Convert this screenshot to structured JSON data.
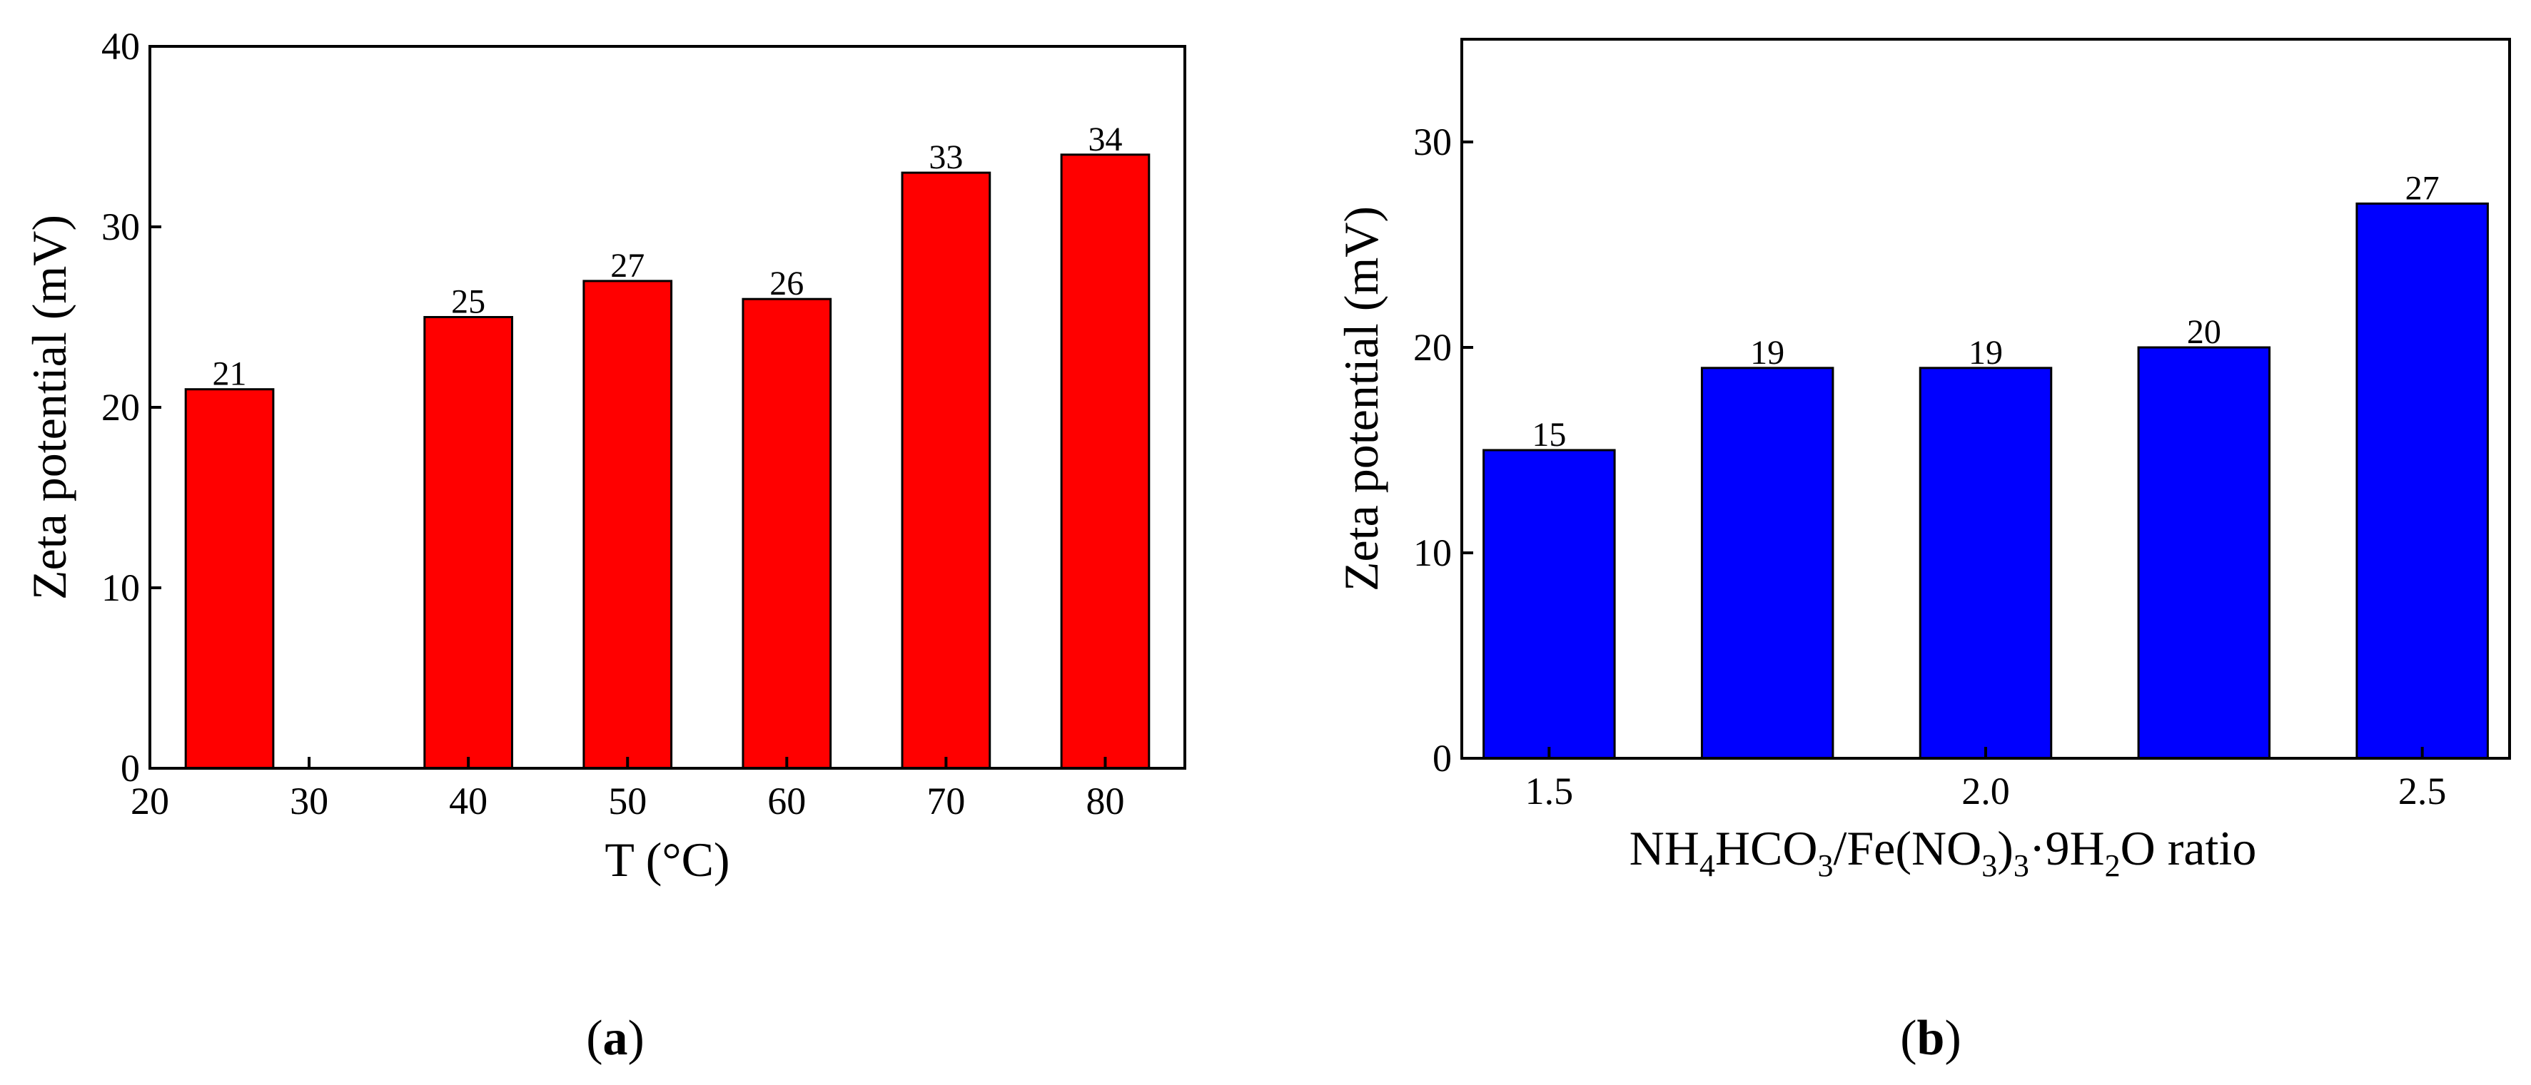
{
  "chart_data": [
    {
      "type": "bar",
      "panel_label": "a",
      "x": [
        25,
        40,
        50,
        60,
        70,
        80
      ],
      "values": [
        21,
        25,
        27,
        26,
        33,
        34
      ],
      "data_labels": [
        "21",
        "25",
        "27",
        "26",
        "33",
        "34"
      ],
      "bar_color": "#ff0000",
      "xlabel": "T (°C)",
      "ylabel": "Zeta potential (mV)",
      "xlim": [
        20,
        85
      ],
      "ylim": [
        0,
        40
      ],
      "xticks": [
        20,
        30,
        40,
        50,
        60,
        70,
        80
      ],
      "xtick_labels": [
        "20",
        "30",
        "40",
        "50",
        "60",
        "70",
        "80"
      ],
      "yticks": [
        0,
        10,
        20,
        30,
        40
      ],
      "ytick_labels": [
        "0",
        "10",
        "20",
        "30",
        "40"
      ],
      "grid": false
    },
    {
      "type": "bar",
      "panel_label": "b",
      "x": [
        1.5,
        1.75,
        2.0,
        2.25,
        2.5
      ],
      "values": [
        15,
        19,
        19,
        20,
        27
      ],
      "data_labels": [
        "15",
        "19",
        "19",
        "20",
        "27"
      ],
      "bar_color": "#0000ff",
      "xlabel": "NH4HCO3/Fe(NO3)3·9H2O ratio",
      "xlabel_parts": {
        "p1": "NH",
        "s1": "4",
        "p2": "HCO",
        "s2": "3",
        "p3": "/Fe(NO",
        "s3": "3",
        "p4": ")",
        "s4": "3",
        "p5": "·9H",
        "s5": "2",
        "p6": "O ratio"
      },
      "ylabel": "Zeta potential (mV)",
      "xlim": [
        1.4,
        2.6
      ],
      "ylim": [
        0,
        35
      ],
      "xticks": [
        1.5,
        2.0,
        2.5
      ],
      "xtick_labels": [
        "1.5",
        "2.0",
        "2.5"
      ],
      "yticks": [
        0,
        10,
        20,
        30
      ],
      "ytick_labels": [
        "0",
        "10",
        "20",
        "30"
      ],
      "grid": false
    }
  ]
}
